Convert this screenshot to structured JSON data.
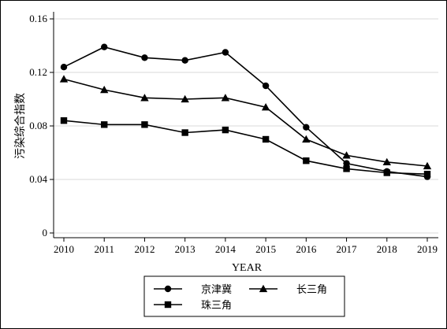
{
  "chart_data": {
    "type": "line",
    "xlabel": "YEAR",
    "ylabel": "污染综合指数",
    "x": [
      "2010",
      "2011",
      "2012",
      "2013",
      "2014",
      "2015",
      "2016",
      "2017",
      "2018",
      "2019"
    ],
    "yticks": [
      "0",
      "0.04",
      "0.08",
      "0.12",
      "0.16"
    ],
    "ylim": [
      0,
      0.16
    ],
    "grid": "horizontal",
    "legend_position": "bottom",
    "series": [
      {
        "name": "京津冀",
        "marker": "circle",
        "values": [
          0.124,
          0.139,
          0.131,
          0.129,
          0.135,
          0.11,
          0.079,
          0.052,
          0.046,
          0.042
        ]
      },
      {
        "name": "长三角",
        "marker": "triangle",
        "values": [
          0.115,
          0.107,
          0.101,
          0.1,
          0.101,
          0.094,
          0.07,
          0.058,
          0.053,
          0.05
        ]
      },
      {
        "name": "珠三角",
        "marker": "square",
        "values": [
          0.084,
          0.081,
          0.081,
          0.075,
          0.077,
          0.07,
          0.054,
          0.048,
          0.045,
          0.044
        ]
      }
    ]
  }
}
